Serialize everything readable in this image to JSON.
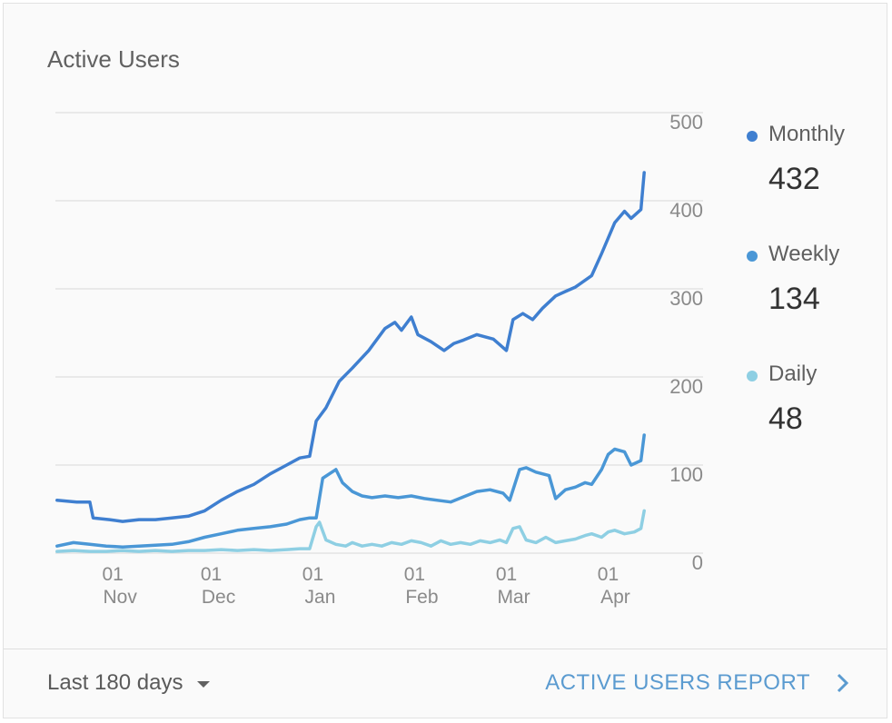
{
  "card": {
    "title": "Active Users",
    "range_label": "Last 180 days",
    "report_label": "ACTIVE USERS REPORT"
  },
  "legend": [
    {
      "name": "Monthly",
      "value": "432",
      "color": "#3f7fd0"
    },
    {
      "name": "Weekly",
      "value": "134",
      "color": "#4a97d6"
    },
    {
      "name": "Daily",
      "value": "48",
      "color": "#8ecfe3"
    }
  ],
  "chart_data": {
    "type": "line",
    "ylim": [
      0,
      500
    ],
    "yticks": [
      0,
      100,
      200,
      300,
      400,
      500
    ],
    "ytick_labels": [
      "0",
      "100",
      "200",
      "300",
      "400",
      "500"
    ],
    "xticks": [
      {
        "day": 17,
        "label": [
          "01",
          "Nov"
        ]
      },
      {
        "day": 47,
        "label": [
          "01",
          "Dec"
        ]
      },
      {
        "day": 78,
        "label": [
          "01",
          "Jan"
        ]
      },
      {
        "day": 109,
        "label": [
          "01",
          "Feb"
        ]
      },
      {
        "day": 137,
        "label": [
          "01",
          "Mar"
        ]
      },
      {
        "day": 168,
        "label": [
          "01",
          "Apr"
        ]
      }
    ],
    "xrange": [
      -0.5,
      179.5
    ],
    "series": [
      {
        "name": "Monthly",
        "color": "#3f7fd0",
        "points": [
          [
            0,
            60
          ],
          [
            6,
            58
          ],
          [
            10,
            58
          ],
          [
            11,
            40
          ],
          [
            16,
            38
          ],
          [
            20,
            36
          ],
          [
            25,
            38
          ],
          [
            30,
            38
          ],
          [
            35,
            40
          ],
          [
            40,
            42
          ],
          [
            45,
            48
          ],
          [
            50,
            60
          ],
          [
            55,
            70
          ],
          [
            60,
            78
          ],
          [
            65,
            90
          ],
          [
            70,
            100
          ],
          [
            74,
            108
          ],
          [
            77,
            110
          ],
          [
            79,
            150
          ],
          [
            82,
            165
          ],
          [
            86,
            195
          ],
          [
            90,
            210
          ],
          [
            95,
            230
          ],
          [
            100,
            255
          ],
          [
            103,
            262
          ],
          [
            105,
            253
          ],
          [
            108,
            268
          ],
          [
            110,
            248
          ],
          [
            114,
            240
          ],
          [
            118,
            230
          ],
          [
            121,
            238
          ],
          [
            124,
            242
          ],
          [
            128,
            248
          ],
          [
            133,
            243
          ],
          [
            137,
            230
          ],
          [
            139,
            265
          ],
          [
            142,
            272
          ],
          [
            145,
            265
          ],
          [
            148,
            278
          ],
          [
            152,
            292
          ],
          [
            155,
            297
          ],
          [
            158,
            302
          ],
          [
            163,
            315
          ],
          [
            166,
            340
          ],
          [
            170,
            375
          ],
          [
            173,
            388
          ],
          [
            175,
            380
          ],
          [
            178,
            390
          ],
          [
            179,
            432
          ]
        ]
      },
      {
        "name": "Weekly",
        "color": "#4a97d6",
        "points": [
          [
            0,
            8
          ],
          [
            5,
            12
          ],
          [
            10,
            10
          ],
          [
            15,
            8
          ],
          [
            20,
            7
          ],
          [
            25,
            8
          ],
          [
            30,
            9
          ],
          [
            35,
            10
          ],
          [
            40,
            13
          ],
          [
            45,
            18
          ],
          [
            50,
            22
          ],
          [
            55,
            26
          ],
          [
            60,
            28
          ],
          [
            65,
            30
          ],
          [
            70,
            33
          ],
          [
            74,
            38
          ],
          [
            77,
            40
          ],
          [
            79,
            40
          ],
          [
            81,
            85
          ],
          [
            85,
            95
          ],
          [
            87,
            80
          ],
          [
            90,
            70
          ],
          [
            93,
            65
          ],
          [
            96,
            63
          ],
          [
            100,
            65
          ],
          [
            104,
            63
          ],
          [
            108,
            65
          ],
          [
            112,
            62
          ],
          [
            116,
            60
          ],
          [
            120,
            58
          ],
          [
            124,
            64
          ],
          [
            128,
            70
          ],
          [
            132,
            72
          ],
          [
            136,
            68
          ],
          [
            138,
            60
          ],
          [
            141,
            95
          ],
          [
            143,
            97
          ],
          [
            146,
            92
          ],
          [
            150,
            88
          ],
          [
            152,
            62
          ],
          [
            155,
            72
          ],
          [
            158,
            75
          ],
          [
            161,
            80
          ],
          [
            163,
            78
          ],
          [
            166,
            95
          ],
          [
            168,
            112
          ],
          [
            170,
            118
          ],
          [
            173,
            115
          ],
          [
            175,
            100
          ],
          [
            178,
            105
          ],
          [
            179,
            134
          ]
        ]
      },
      {
        "name": "Daily",
        "color": "#8ecfe3",
        "points": [
          [
            0,
            2
          ],
          [
            5,
            3
          ],
          [
            10,
            2
          ],
          [
            15,
            2
          ],
          [
            20,
            3
          ],
          [
            25,
            2
          ],
          [
            30,
            3
          ],
          [
            35,
            2
          ],
          [
            40,
            3
          ],
          [
            45,
            3
          ],
          [
            50,
            4
          ],
          [
            55,
            3
          ],
          [
            60,
            4
          ],
          [
            65,
            3
          ],
          [
            70,
            4
          ],
          [
            74,
            5
          ],
          [
            77,
            5
          ],
          [
            79,
            30
          ],
          [
            80,
            35
          ],
          [
            82,
            15
          ],
          [
            85,
            10
          ],
          [
            88,
            8
          ],
          [
            90,
            12
          ],
          [
            93,
            8
          ],
          [
            96,
            10
          ],
          [
            99,
            8
          ],
          [
            102,
            12
          ],
          [
            105,
            10
          ],
          [
            108,
            14
          ],
          [
            111,
            12
          ],
          [
            114,
            8
          ],
          [
            117,
            14
          ],
          [
            120,
            10
          ],
          [
            123,
            12
          ],
          [
            126,
            10
          ],
          [
            129,
            14
          ],
          [
            132,
            12
          ],
          [
            135,
            15
          ],
          [
            137,
            12
          ],
          [
            139,
            28
          ],
          [
            141,
            30
          ],
          [
            143,
            15
          ],
          [
            146,
            12
          ],
          [
            149,
            18
          ],
          [
            152,
            12
          ],
          [
            155,
            14
          ],
          [
            158,
            16
          ],
          [
            161,
            20
          ],
          [
            163,
            22
          ],
          [
            166,
            18
          ],
          [
            168,
            24
          ],
          [
            170,
            26
          ],
          [
            173,
            22
          ],
          [
            176,
            24
          ],
          [
            178,
            28
          ],
          [
            179,
            48
          ]
        ]
      }
    ]
  }
}
